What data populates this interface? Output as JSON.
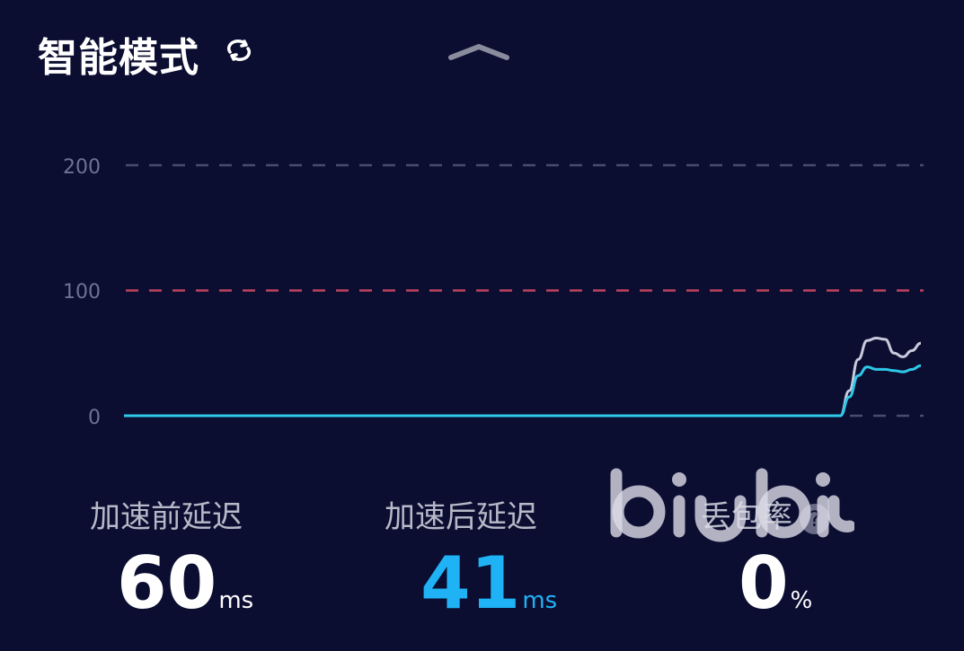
{
  "header": {
    "title": "智能模式",
    "switch_icon": "refresh-cycle-icon",
    "collapse_icon": "chevron-up-icon"
  },
  "chart_data": {
    "type": "line",
    "title": "",
    "xlabel": "",
    "ylabel": "",
    "ylim": [
      0,
      200
    ],
    "yticks": [
      "0",
      "100",
      "200"
    ],
    "threshold": {
      "value": 100,
      "color": "#c0455f"
    },
    "grid": true,
    "series": [
      {
        "key": "before",
        "color": "#c9cbdc",
        "values": [
          0,
          0,
          0,
          0,
          0,
          0,
          0,
          0,
          0,
          0,
          0,
          0,
          0,
          0,
          0,
          0,
          0,
          0,
          0,
          0,
          0,
          0,
          0,
          0,
          0,
          0,
          0,
          0,
          0,
          0,
          0,
          0,
          0,
          0,
          0,
          0,
          0,
          0,
          0,
          0,
          0,
          0,
          0,
          0,
          0,
          0,
          0,
          0,
          0,
          0,
          0,
          0,
          0,
          0,
          0,
          0,
          0,
          0,
          0,
          0,
          0,
          0,
          0,
          0,
          0,
          0,
          0,
          0,
          0,
          0,
          0,
          0,
          0,
          0,
          0,
          0,
          0,
          0,
          0,
          0,
          0,
          20,
          45,
          60,
          62,
          61,
          50,
          47,
          52,
          58
        ]
      },
      {
        "key": "after",
        "color": "#2fc8e8",
        "values": [
          0,
          0,
          0,
          0,
          0,
          0,
          0,
          0,
          0,
          0,
          0,
          0,
          0,
          0,
          0,
          0,
          0,
          0,
          0,
          0,
          0,
          0,
          0,
          0,
          0,
          0,
          0,
          0,
          0,
          0,
          0,
          0,
          0,
          0,
          0,
          0,
          0,
          0,
          0,
          0,
          0,
          0,
          0,
          0,
          0,
          0,
          0,
          0,
          0,
          0,
          0,
          0,
          0,
          0,
          0,
          0,
          0,
          0,
          0,
          0,
          0,
          0,
          0,
          0,
          0,
          0,
          0,
          0,
          0,
          0,
          0,
          0,
          0,
          0,
          0,
          0,
          0,
          0,
          0,
          0,
          0,
          15,
          32,
          39,
          37,
          37,
          36,
          35,
          37,
          40
        ]
      }
    ]
  },
  "stats": [
    {
      "label": "加速前延迟",
      "value": "60",
      "unit": "ms",
      "color": "#ffffff"
    },
    {
      "label": "加速后延迟",
      "value": "41",
      "unit": "ms",
      "color": "#1fb3f5"
    },
    {
      "label": "丢包率",
      "value": "0",
      "unit": "%",
      "color": "#ffffff",
      "help": "?"
    }
  ],
  "watermark": "biubiu"
}
